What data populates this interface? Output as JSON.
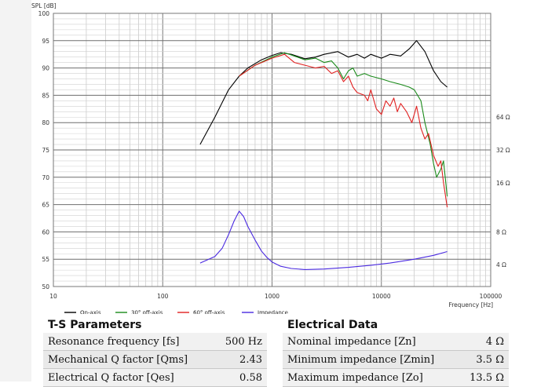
{
  "chart_data": {
    "type": "line",
    "ylabel": "SPL [dB]",
    "xlabel": "Frequency [Hz]",
    "xscale": "log",
    "xlim": [
      10,
      100000
    ],
    "ylim": [
      50,
      100
    ],
    "xticks": [
      "10",
      "100",
      "1000",
      "10000",
      "100000"
    ],
    "yticks": [
      "50",
      "55",
      "60",
      "65",
      "70",
      "75",
      "80",
      "85",
      "90",
      "95",
      "100"
    ],
    "right_axis_labels": [
      {
        "spl": 81,
        "label": "64 Ω"
      },
      {
        "spl": 75,
        "label": "32 Ω"
      },
      {
        "spl": 69,
        "label": "16 Ω"
      },
      {
        "spl": 60,
        "label": "8 Ω"
      },
      {
        "spl": 54,
        "label": "4 Ω"
      }
    ],
    "grid": true,
    "legend_position": "bottom",
    "series": [
      {
        "name": "On-axis",
        "color": "#000000",
        "points": [
          [
            220,
            76
          ],
          [
            300,
            81
          ],
          [
            400,
            86
          ],
          [
            500,
            88.5
          ],
          [
            600,
            90
          ],
          [
            800,
            91.5
          ],
          [
            1000,
            92.3
          ],
          [
            1200,
            92.8
          ],
          [
            1500,
            92.5
          ],
          [
            2000,
            91.7
          ],
          [
            2500,
            92
          ],
          [
            3000,
            92.5
          ],
          [
            4000,
            93
          ],
          [
            5000,
            92
          ],
          [
            6000,
            92.5
          ],
          [
            7000,
            91.8
          ],
          [
            8000,
            92.5
          ],
          [
            10000,
            91.8
          ],
          [
            12000,
            92.5
          ],
          [
            15000,
            92.2
          ],
          [
            18000,
            93.5
          ],
          [
            21000,
            95
          ],
          [
            25000,
            93
          ],
          [
            30000,
            89.5
          ],
          [
            35000,
            87.5
          ],
          [
            40000,
            86.5
          ]
        ]
      },
      {
        "name": "30° off-axis",
        "color": "#1a8a1a",
        "points": [
          [
            500,
            88.5
          ],
          [
            700,
            90.5
          ],
          [
            1000,
            92
          ],
          [
            1300,
            92.8
          ],
          [
            1600,
            92.2
          ],
          [
            2000,
            91.5
          ],
          [
            2500,
            91.8
          ],
          [
            3000,
            91
          ],
          [
            3500,
            91.3
          ],
          [
            4000,
            90
          ],
          [
            4500,
            88
          ],
          [
            5000,
            89.5
          ],
          [
            5500,
            90
          ],
          [
            6000,
            88.5
          ],
          [
            7000,
            89
          ],
          [
            8000,
            88.5
          ],
          [
            10000,
            88
          ],
          [
            12000,
            87.5
          ],
          [
            15000,
            87
          ],
          [
            18000,
            86.5
          ],
          [
            20000,
            86
          ],
          [
            23000,
            84
          ],
          [
            25000,
            80
          ],
          [
            28000,
            76
          ],
          [
            30000,
            72.5
          ],
          [
            32000,
            70
          ],
          [
            35000,
            71.5
          ],
          [
            37000,
            73
          ],
          [
            40000,
            66.5
          ]
        ]
      },
      {
        "name": "60° off-axis",
        "color": "#e02020",
        "points": [
          [
            500,
            88.5
          ],
          [
            700,
            90.5
          ],
          [
            1000,
            91.8
          ],
          [
            1300,
            92.5
          ],
          [
            1600,
            91
          ],
          [
            2000,
            90.5
          ],
          [
            2500,
            90
          ],
          [
            3000,
            90.3
          ],
          [
            3500,
            89
          ],
          [
            4000,
            89.5
          ],
          [
            4500,
            87.5
          ],
          [
            5000,
            88.5
          ],
          [
            5500,
            86.5
          ],
          [
            6000,
            85.5
          ],
          [
            7000,
            85
          ],
          [
            7500,
            84
          ],
          [
            8000,
            86
          ],
          [
            9000,
            82.5
          ],
          [
            10000,
            81.5
          ],
          [
            11000,
            84
          ],
          [
            12000,
            83
          ],
          [
            13000,
            84.5
          ],
          [
            14000,
            82
          ],
          [
            15000,
            83.5
          ],
          [
            17000,
            82
          ],
          [
            19000,
            80
          ],
          [
            21000,
            83
          ],
          [
            23000,
            79
          ],
          [
            25000,
            77
          ],
          [
            27000,
            78
          ],
          [
            30000,
            74
          ],
          [
            33000,
            72
          ],
          [
            35000,
            73
          ],
          [
            37000,
            69
          ],
          [
            40000,
            64.5
          ]
        ]
      },
      {
        "name": "Impedance",
        "color": "#4a2ae0",
        "points": [
          [
            220,
            54.3
          ],
          [
            300,
            55.5
          ],
          [
            350,
            57
          ],
          [
            400,
            59.5
          ],
          [
            450,
            62
          ],
          [
            500,
            63.8
          ],
          [
            550,
            62.8
          ],
          [
            600,
            61
          ],
          [
            700,
            58.5
          ],
          [
            800,
            56.5
          ],
          [
            900,
            55.3
          ],
          [
            1000,
            54.5
          ],
          [
            1200,
            53.7
          ],
          [
            1500,
            53.3
          ],
          [
            2000,
            53.1
          ],
          [
            3000,
            53.2
          ],
          [
            5000,
            53.5
          ],
          [
            8000,
            53.9
          ],
          [
            12000,
            54.3
          ],
          [
            20000,
            55
          ],
          [
            30000,
            55.7
          ],
          [
            40000,
            56.4
          ]
        ]
      }
    ]
  },
  "ts_table": {
    "title": "T-S Parameters",
    "rows": [
      {
        "label": "Resonance frequency [fs]",
        "value": "500 Hz"
      },
      {
        "label": "Mechanical Q factor [Qms]",
        "value": "2.43"
      },
      {
        "label": "Electrical Q factor [Qes]",
        "value": "0.58"
      }
    ]
  },
  "elec_table": {
    "title": "Electrical Data",
    "rows": [
      {
        "label": "Nominal impedance [Zn]",
        "value": "4 Ω"
      },
      {
        "label": "Minimum impedance [Zmin]",
        "value": "3.5 Ω"
      },
      {
        "label": "Maximum impedance [Zo]",
        "value": "13.5 Ω"
      }
    ]
  }
}
